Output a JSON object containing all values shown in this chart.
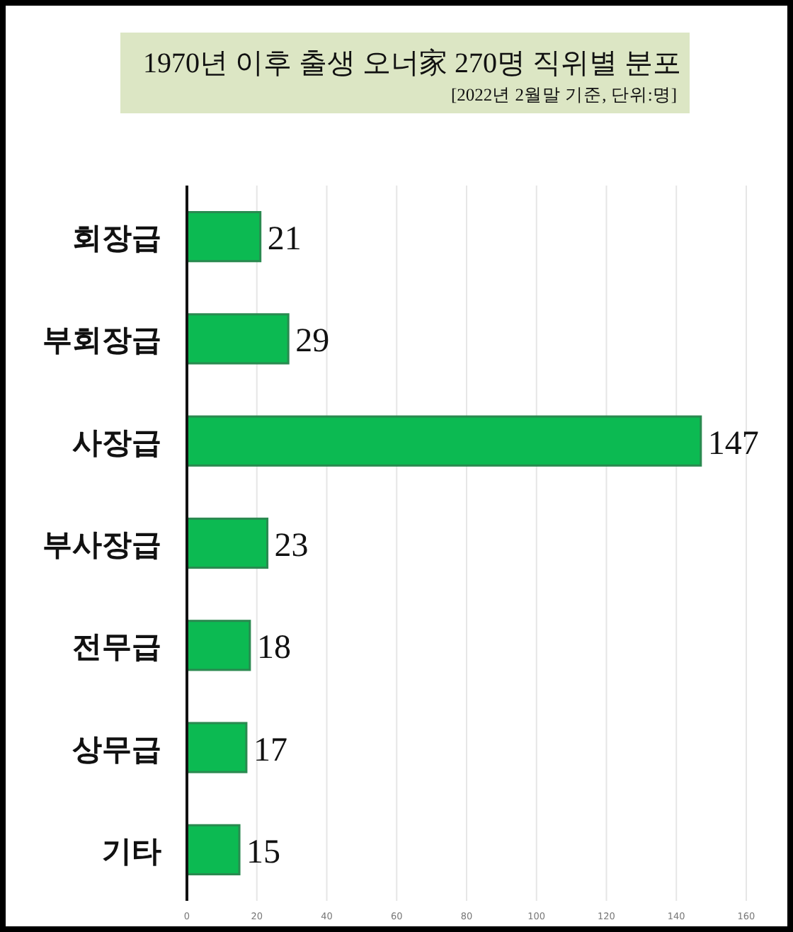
{
  "chart_data": {
    "type": "bar",
    "orientation": "horizontal",
    "title": "1970년 이후 출생 오너家 270명 직위별 분포",
    "subtitle": "[2022년 2월말 기준, 단위:명]",
    "categories": [
      "회장급",
      "부회장급",
      "사장급",
      "부사장급",
      "전무급",
      "상무급",
      "기타"
    ],
    "values": [
      21,
      29,
      147,
      23,
      18,
      17,
      15
    ],
    "color": "#0cba52",
    "xlim": [
      0,
      160
    ],
    "xticks": [
      0,
      20,
      40,
      60,
      80,
      100,
      120,
      140,
      160
    ],
    "grid": "x",
    "data_labels": true
  }
}
